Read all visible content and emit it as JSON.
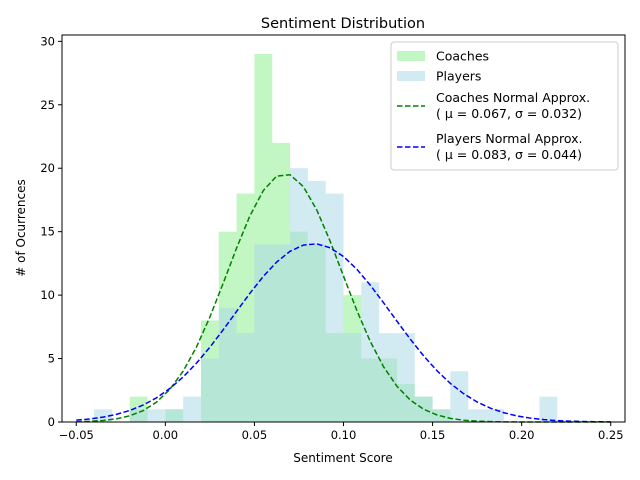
{
  "chart_data": {
    "type": "bar",
    "title": "Sentiment Distribution",
    "xlabel": "Sentiment Score",
    "ylabel": "# of Ocurrences",
    "xlim": [
      -0.058,
      0.258
    ],
    "ylim": [
      0,
      30.5
    ],
    "xticks": [
      -0.05,
      0.0,
      0.05,
      0.1,
      0.15,
      0.2,
      0.25
    ],
    "xtick_labels": [
      "−0.05",
      "0.00",
      "0.05",
      "0.10",
      "0.15",
      "0.20",
      "0.25"
    ],
    "yticks": [
      0,
      5,
      10,
      15,
      20,
      25,
      30
    ],
    "ytick_labels": [
      "0",
      "5",
      "10",
      "15",
      "20",
      "25",
      "30"
    ],
    "legend_position": "top-right",
    "grid": false,
    "bin_width": 0.01,
    "bin_starts": [
      -0.04,
      -0.03,
      -0.02,
      -0.01,
      0.0,
      0.01,
      0.02,
      0.03,
      0.04,
      0.05,
      0.06,
      0.07,
      0.08,
      0.09,
      0.1,
      0.11,
      0.12,
      0.13,
      0.14,
      0.15,
      0.16,
      0.17,
      0.18,
      0.19,
      0.2,
      0.21
    ],
    "series": [
      {
        "name": "Coaches",
        "kind": "hist",
        "color": "#90ee90",
        "values": [
          0,
          0,
          2,
          0,
          1,
          0,
          8,
          15,
          18,
          29,
          22,
          15,
          14,
          7,
          10,
          5,
          5,
          3,
          2,
          1,
          0,
          0,
          0,
          0,
          0,
          0
        ]
      },
      {
        "name": "Players",
        "kind": "hist",
        "color": "#add8e6",
        "values": [
          1,
          0,
          1,
          1,
          1,
          2,
          5,
          9,
          7,
          14,
          14,
          20,
          19,
          18,
          7,
          11,
          7,
          7,
          2,
          1,
          4,
          1,
          1,
          0,
          0,
          2
        ]
      },
      {
        "name": "Coaches Normal Approx.",
        "name_line2": "( μ = 0.067, σ = 0.032)",
        "kind": "curve",
        "color": "#008000",
        "mu": 0.067,
        "sigma": 0.032,
        "total": 157
      },
      {
        "name": "Players Normal Approx.",
        "name_line2": "( μ = 0.083, σ = 0.044)",
        "kind": "curve",
        "color": "#0000ff",
        "mu": 0.083,
        "sigma": 0.044,
        "total": 155
      }
    ]
  }
}
